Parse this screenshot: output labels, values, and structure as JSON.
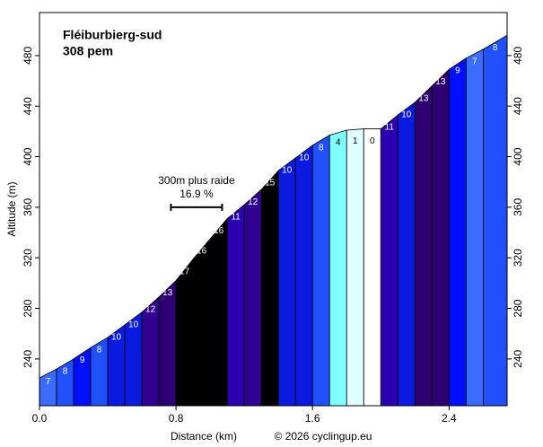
{
  "chart_data": {
    "type": "profile",
    "title": "Fléiburbierg-sud",
    "subtitle": "308 pem",
    "x_label": "Distance (km)",
    "y_label": "Altitude (m)",
    "credit": "© 2026 cyclingup.eu",
    "x": [
      0,
      0.1,
      0.2,
      0.3,
      0.4,
      0.5,
      0.6,
      0.7,
      0.8,
      0.9,
      1.0,
      1.1,
      1.2,
      1.3,
      1.4,
      1.5,
      1.6,
      1.7,
      1.8,
      1.9,
      2.0,
      2.1,
      2.2,
      2.3,
      2.4,
      2.5,
      2.6,
      2.74
    ],
    "values": [
      225,
      232,
      240,
      249,
      257,
      267,
      277,
      289,
      302,
      319,
      335,
      351,
      362,
      374,
      389,
      399,
      409,
      417,
      421,
      422,
      422,
      433,
      443,
      456,
      469,
      478,
      485,
      496
    ],
    "gradients": [
      7,
      8,
      9,
      8,
      10,
      10,
      12,
      13,
      17,
      16,
      16,
      11,
      12,
      15,
      10,
      10,
      8,
      4,
      1,
      0,
      11,
      10,
      13,
      13,
      9,
      7,
      8
    ],
    "colors": [
      "#3a6cff",
      "#2050ff",
      "#0010ff",
      "#2050ff",
      "#0a1ae0",
      "#0a1ae0",
      "#300090",
      "#2c0070",
      "#000000",
      "#000000",
      "#000000",
      "#2a00b0",
      "#300090",
      "#000000",
      "#0a1ae0",
      "#0a1ae0",
      "#2050ff",
      "#80ffff",
      "#e0ffff",
      "#ffffff",
      "#2a00b0",
      "#0a1ae0",
      "#2c0070",
      "#2c0070",
      "#0010ff",
      "#3a6cff",
      "#2050ff"
    ],
    "annotation": {
      "lines": [
        "300m plus raide",
        "16.9 %"
      ],
      "x": [
        0.77,
        1.07
      ],
      "y": 360
    },
    "xlim": [
      0,
      2.74
    ],
    "ylim": [
      203,
      514
    ],
    "xticks": [
      {
        "value": 0,
        "label": "0.0"
      },
      0.8,
      1.6,
      2.4
    ],
    "yticks": [
      240,
      280,
      320,
      360,
      400,
      440,
      480
    ]
  }
}
